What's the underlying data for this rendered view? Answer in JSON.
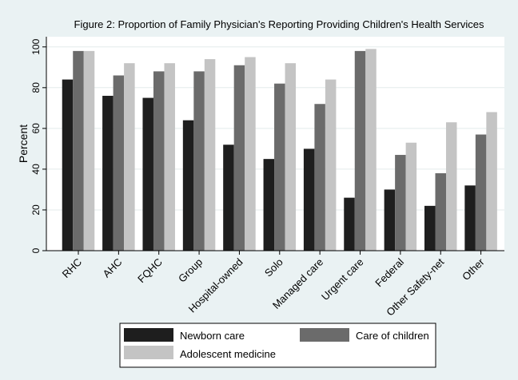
{
  "chart_data": {
    "type": "bar",
    "title": "Figure 2: Proportion of Family Physician's Reporting Providing Children's Health Services",
    "xlabel": "",
    "ylabel": "Percent",
    "ylim": [
      0,
      105
    ],
    "yticks": [
      0,
      20,
      40,
      60,
      80,
      100
    ],
    "grid": true,
    "legend_position": "bottom",
    "categories": [
      "RHC",
      "AHC",
      "FQHC",
      "Group",
      "Hospital-owned",
      "Solo",
      "Managed care",
      "Urgent care",
      "Federal",
      "Other Safety-net",
      "Other"
    ],
    "series": [
      {
        "name": "Newborn care",
        "color": "#1e1e1e",
        "values": [
          84,
          76,
          75,
          64,
          52,
          45,
          50,
          26,
          30,
          22,
          32
        ]
      },
      {
        "name": "Care of children",
        "color": "#6b6b6b",
        "values": [
          98,
          86,
          88,
          88,
          91,
          82,
          72,
          98,
          47,
          38,
          57
        ]
      },
      {
        "name": "Adolescent medicine",
        "color": "#c4c4c4",
        "values": [
          98,
          92,
          92,
          94,
          95,
          92,
          84,
          99,
          53,
          63,
          68
        ]
      }
    ]
  }
}
